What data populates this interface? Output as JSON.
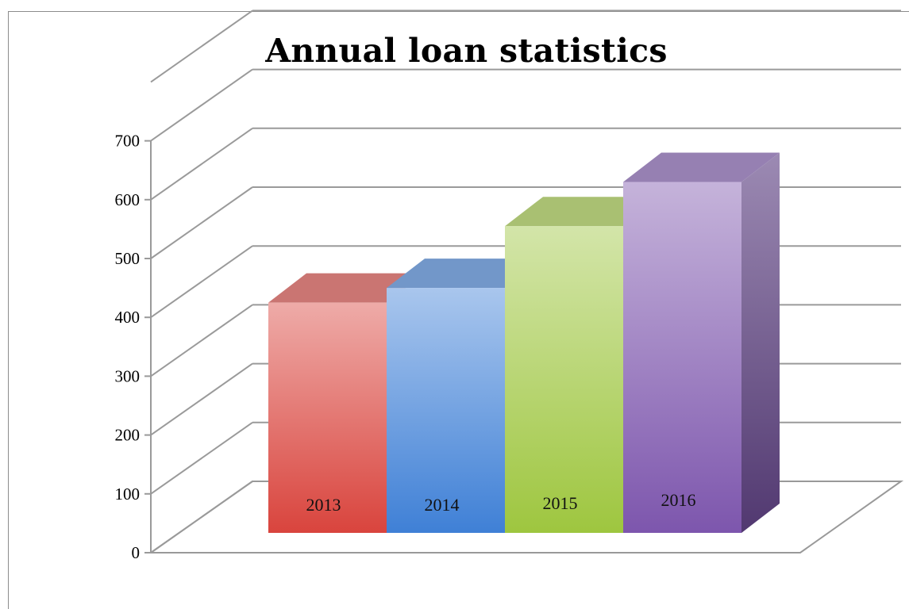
{
  "chart_data": {
    "type": "bar",
    "title": "Annual loan statistics",
    "categories": [
      "2013",
      "2014",
      "2015",
      "2016"
    ],
    "values": [
      425,
      450,
      555,
      630
    ],
    "colors": [
      "#d9443d",
      "#3f80d6",
      "#9ec63f",
      "#7d56ad"
    ],
    "ylim": [
      0,
      700
    ],
    "yticks": [
      0,
      100,
      200,
      300,
      400,
      500,
      600,
      700
    ],
    "grid": true,
    "style": "3d"
  }
}
